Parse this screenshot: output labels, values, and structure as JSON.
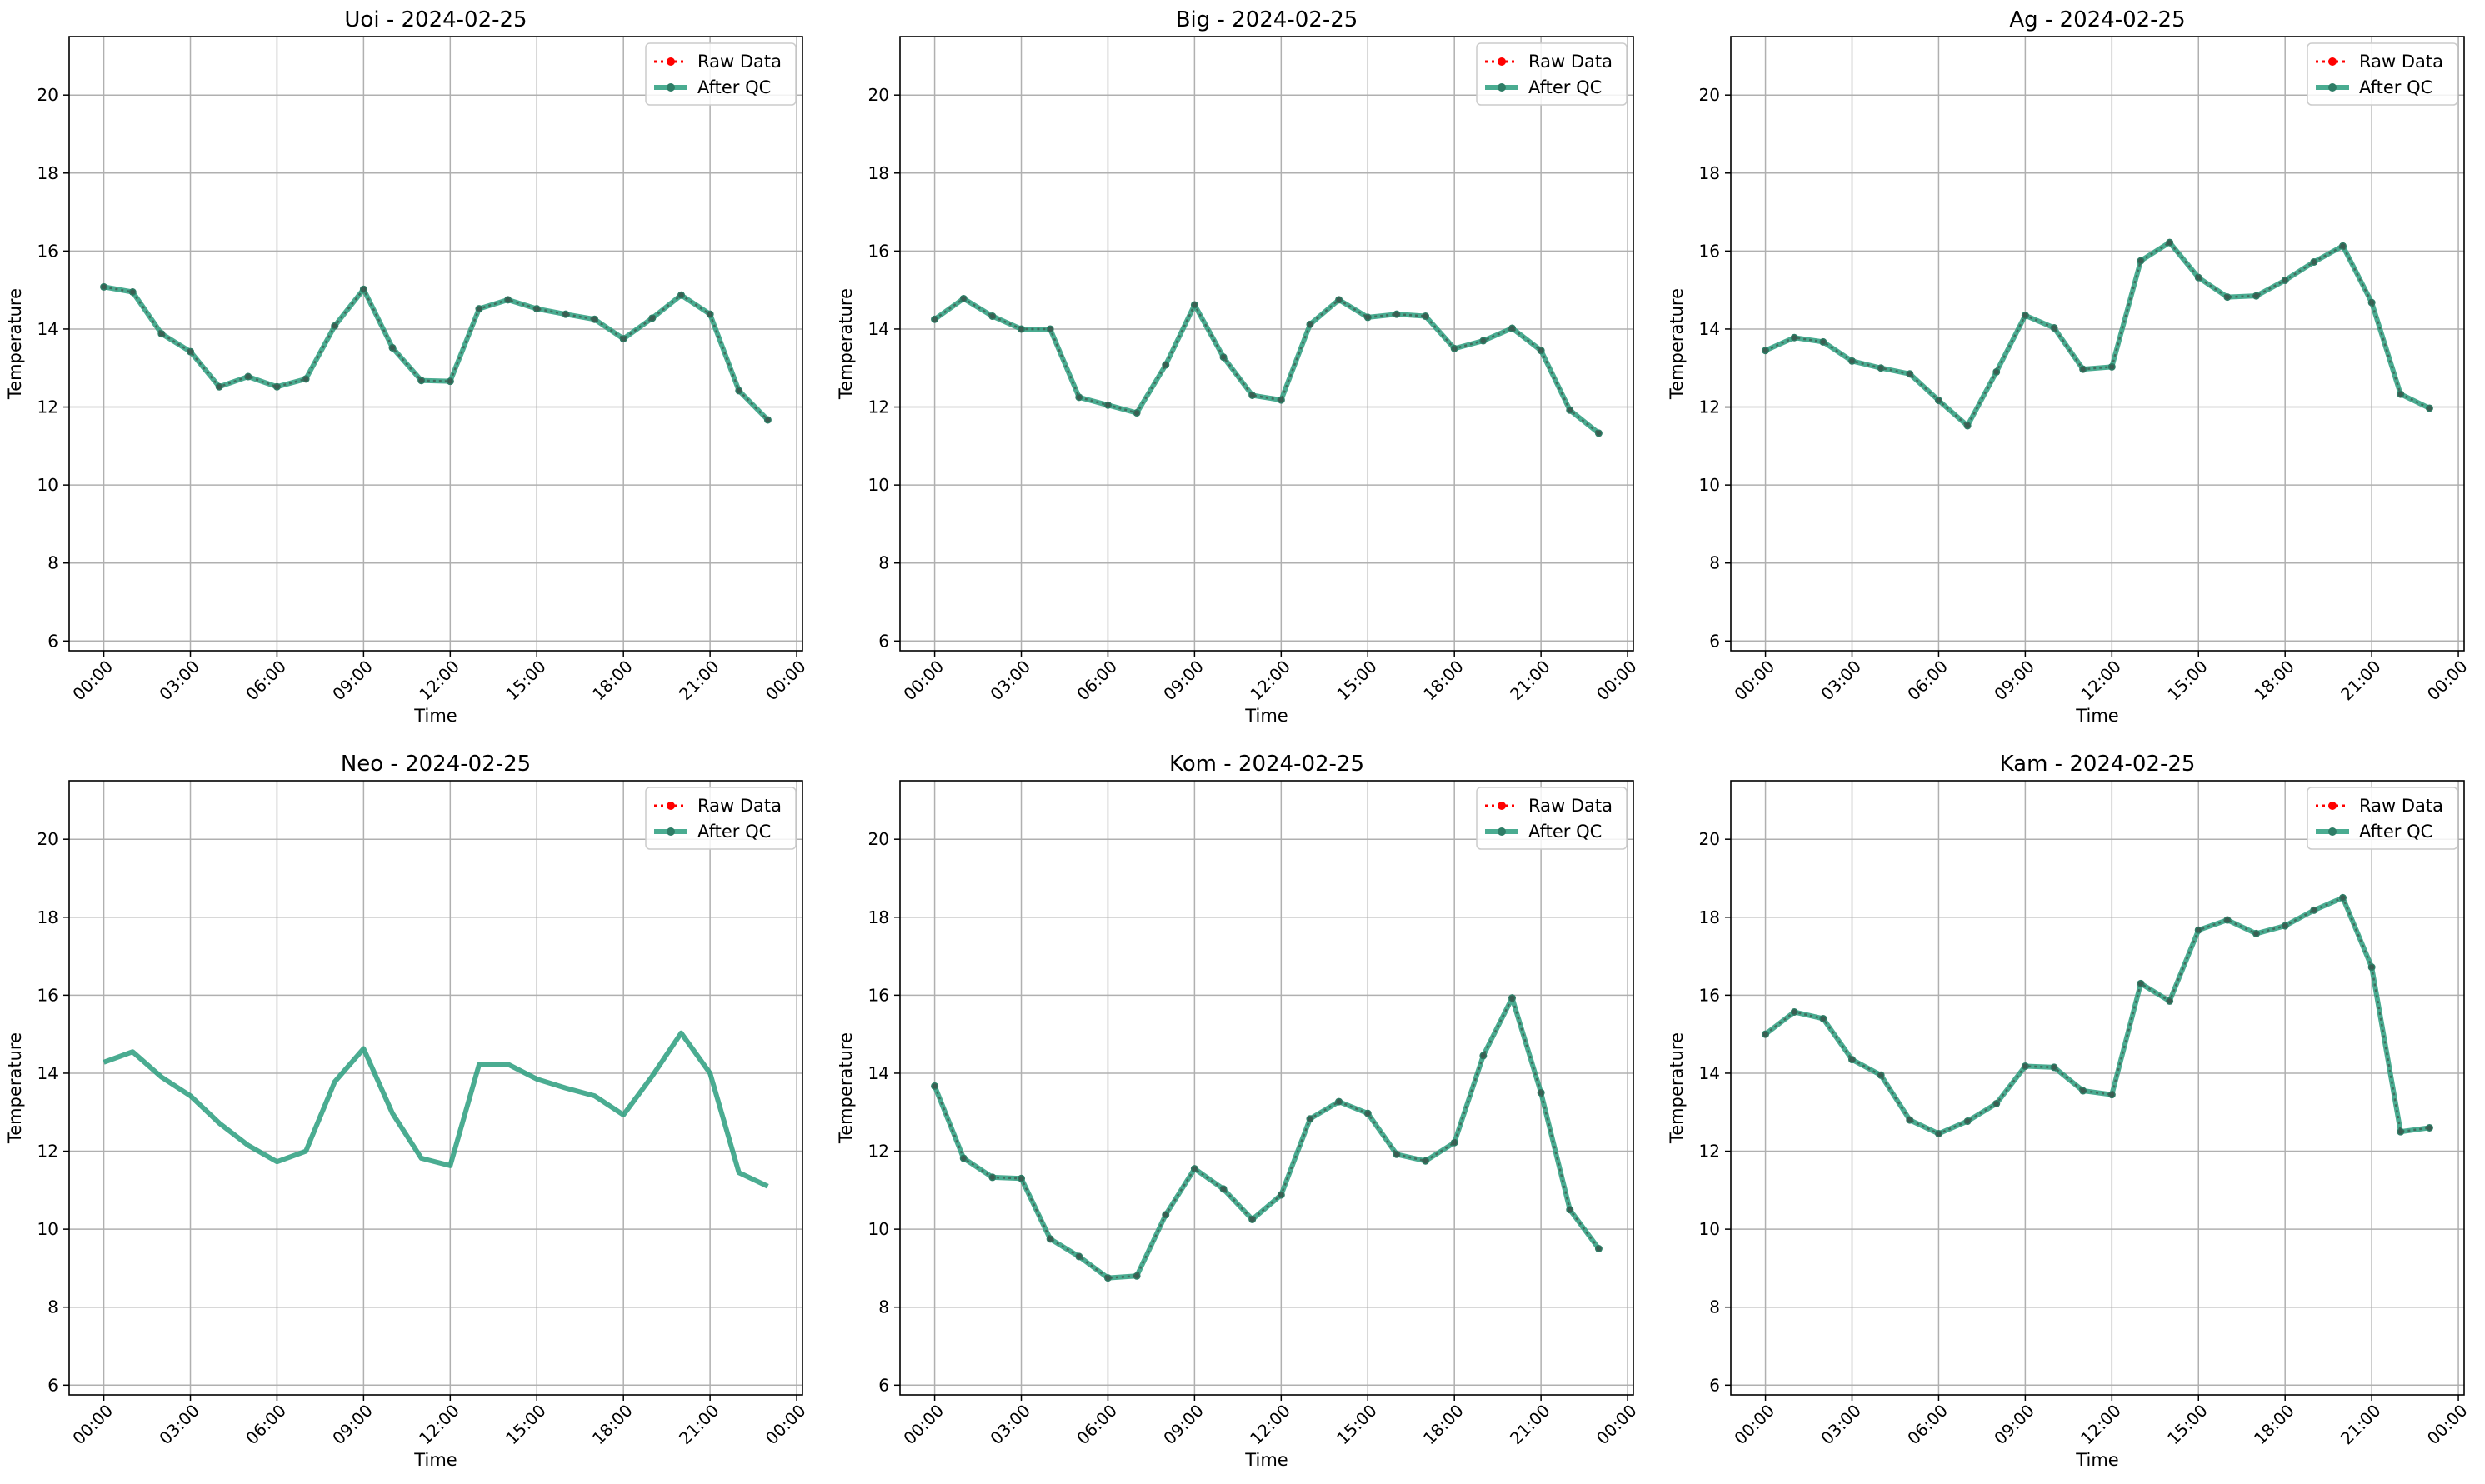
{
  "figure": {
    "colors": {
      "raw": "#ff0000",
      "qc": "#2a9d7e",
      "grid": "#b0b0b0",
      "axes": "#000000",
      "background": "#ffffff"
    }
  },
  "chart_data": [
    {
      "type": "line",
      "title": "Uoi - 2024-02-25",
      "xlabel": "Time",
      "ylabel": "Temperature",
      "x_ticks": [
        "00:00",
        "03:00",
        "06:00",
        "09:00",
        "12:00",
        "15:00",
        "18:00",
        "21:00",
        "00:00"
      ],
      "y_ticks": [
        6,
        8,
        10,
        12,
        14,
        16,
        18,
        20
      ],
      "ylim": [
        5.75,
        21.5
      ],
      "xlim_hours": [
        -1.2,
        24.2
      ],
      "grid": true,
      "legend_position": "upper right",
      "x_hours": [
        0,
        1,
        2,
        3,
        4,
        5,
        6,
        7,
        8,
        9,
        10,
        11,
        12,
        13,
        14,
        15,
        16,
        17,
        18,
        19,
        20,
        21,
        22,
        23
      ],
      "series": [
        {
          "name": "Raw Data",
          "style": "dotted",
          "marker": true,
          "values": [
            15.08,
            14.95,
            13.88,
            13.42,
            12.52,
            12.78,
            12.52,
            12.72,
            14.08,
            15.02,
            13.52,
            12.68,
            12.66,
            14.52,
            14.75,
            14.52,
            14.38,
            14.25,
            13.75,
            14.28,
            14.87,
            14.38,
            12.42,
            11.67
          ]
        },
        {
          "name": "After QC",
          "style": "solid",
          "marker": true,
          "values": [
            15.08,
            14.95,
            13.88,
            13.42,
            12.52,
            12.78,
            12.52,
            12.72,
            14.08,
            15.02,
            13.52,
            12.68,
            12.66,
            14.52,
            14.75,
            14.52,
            14.38,
            14.25,
            13.75,
            14.28,
            14.87,
            14.38,
            12.42,
            11.67
          ]
        }
      ]
    },
    {
      "type": "line",
      "title": "Big - 2024-02-25",
      "xlabel": "Time",
      "ylabel": "Temperature",
      "x_ticks": [
        "00:00",
        "03:00",
        "06:00",
        "09:00",
        "12:00",
        "15:00",
        "18:00",
        "21:00",
        "00:00"
      ],
      "y_ticks": [
        6,
        8,
        10,
        12,
        14,
        16,
        18,
        20
      ],
      "ylim": [
        5.75,
        21.5
      ],
      "xlim_hours": [
        -1.2,
        24.2
      ],
      "grid": true,
      "legend_position": "upper right",
      "x_hours": [
        0,
        1,
        2,
        3,
        4,
        5,
        6,
        7,
        8,
        9,
        10,
        11,
        12,
        13,
        14,
        15,
        16,
        17,
        18,
        19,
        20,
        21,
        22,
        23
      ],
      "series": [
        {
          "name": "Raw Data",
          "style": "dotted",
          "marker": true,
          "values": [
            14.25,
            14.78,
            14.33,
            14.0,
            14.0,
            12.25,
            12.05,
            11.85,
            13.08,
            14.62,
            13.28,
            12.3,
            12.18,
            14.12,
            14.75,
            14.3,
            14.38,
            14.33,
            13.5,
            13.7,
            14.02,
            13.45,
            11.92,
            11.33
          ]
        },
        {
          "name": "After QC",
          "style": "solid",
          "marker": true,
          "values": [
            14.25,
            14.78,
            14.33,
            14.0,
            14.0,
            12.25,
            12.05,
            11.85,
            13.08,
            14.62,
            13.28,
            12.3,
            12.18,
            14.12,
            14.75,
            14.3,
            14.38,
            14.33,
            13.5,
            13.7,
            14.02,
            13.45,
            11.92,
            11.33
          ]
        }
      ]
    },
    {
      "type": "line",
      "title": "Ag - 2024-02-25",
      "xlabel": "Time",
      "ylabel": "Temperature",
      "x_ticks": [
        "00:00",
        "03:00",
        "06:00",
        "09:00",
        "12:00",
        "15:00",
        "18:00",
        "21:00",
        "00:00"
      ],
      "y_ticks": [
        6,
        8,
        10,
        12,
        14,
        16,
        18,
        20
      ],
      "ylim": [
        5.75,
        21.5
      ],
      "xlim_hours": [
        -1.2,
        24.2
      ],
      "grid": true,
      "legend_position": "upper right",
      "x_hours": [
        0,
        1,
        2,
        3,
        4,
        5,
        6,
        7,
        8,
        9,
        10,
        11,
        12,
        13,
        14,
        15,
        16,
        17,
        18,
        19,
        20,
        21,
        22,
        23
      ],
      "series": [
        {
          "name": "Raw Data",
          "style": "dotted",
          "marker": true,
          "values": [
            13.45,
            13.78,
            13.67,
            13.18,
            13.0,
            12.85,
            12.17,
            11.52,
            12.9,
            14.35,
            14.03,
            12.97,
            13.03,
            15.75,
            16.22,
            15.32,
            14.82,
            14.85,
            15.25,
            15.72,
            16.13,
            14.68,
            12.33,
            11.97
          ]
        },
        {
          "name": "After QC",
          "style": "solid",
          "marker": true,
          "values": [
            13.45,
            13.78,
            13.67,
            13.18,
            13.0,
            12.85,
            12.17,
            11.52,
            12.9,
            14.35,
            14.03,
            12.97,
            13.03,
            15.75,
            16.22,
            15.32,
            14.82,
            14.85,
            15.25,
            15.72,
            16.13,
            14.68,
            12.33,
            11.97
          ]
        }
      ]
    },
    {
      "type": "line",
      "title": "Neo - 2024-02-25",
      "xlabel": "Time",
      "ylabel": "Temperature",
      "x_ticks": [
        "00:00",
        "03:00",
        "06:00",
        "09:00",
        "12:00",
        "15:00",
        "18:00",
        "21:00",
        "00:00"
      ],
      "y_ticks": [
        6,
        8,
        10,
        12,
        14,
        16,
        18,
        20
      ],
      "ylim": [
        5.75,
        21.5
      ],
      "xlim_hours": [
        -1.2,
        24.2
      ],
      "grid": true,
      "legend_position": "upper right",
      "x_hours": [
        0,
        1,
        2,
        3,
        4,
        5,
        6,
        7,
        8,
        9,
        10,
        11,
        12,
        13,
        14,
        15,
        16,
        17,
        18,
        19,
        20,
        21,
        22,
        23
      ],
      "series": [
        {
          "name": "Raw Data",
          "style": "dotted",
          "marker": true,
          "values": []
        },
        {
          "name": "After QC",
          "style": "solid",
          "marker": false,
          "values": [
            14.28,
            14.55,
            13.9,
            13.42,
            12.72,
            12.15,
            11.73,
            12.0,
            13.78,
            14.63,
            12.97,
            11.82,
            11.63,
            14.22,
            14.23,
            13.85,
            13.62,
            13.42,
            12.93,
            13.93,
            15.03,
            14.0,
            11.45,
            11.1
          ]
        }
      ]
    },
    {
      "type": "line",
      "title": "Kom - 2024-02-25",
      "xlabel": "Time",
      "ylabel": "Temperature",
      "x_ticks": [
        "00:00",
        "03:00",
        "06:00",
        "09:00",
        "12:00",
        "15:00",
        "18:00",
        "21:00",
        "00:00"
      ],
      "y_ticks": [
        6,
        8,
        10,
        12,
        14,
        16,
        18,
        20
      ],
      "ylim": [
        5.75,
        21.5
      ],
      "xlim_hours": [
        -1.2,
        24.2
      ],
      "grid": true,
      "legend_position": "upper right",
      "x_hours": [
        0,
        1,
        2,
        3,
        4,
        5,
        6,
        7,
        8,
        9,
        10,
        11,
        12,
        13,
        14,
        15,
        16,
        17,
        18,
        19,
        20,
        21,
        22,
        23
      ],
      "series": [
        {
          "name": "Raw Data",
          "style": "dotted",
          "marker": true,
          "values": [
            13.67,
            11.82,
            11.33,
            11.3,
            9.75,
            9.3,
            8.75,
            8.8,
            10.37,
            11.55,
            11.03,
            10.25,
            10.88,
            12.83,
            13.27,
            12.97,
            11.92,
            11.75,
            12.22,
            14.45,
            15.93,
            13.5,
            10.5,
            9.5
          ]
        },
        {
          "name": "After QC",
          "style": "solid",
          "marker": true,
          "values": [
            13.67,
            11.82,
            11.33,
            11.3,
            9.75,
            9.3,
            8.75,
            8.8,
            10.37,
            11.55,
            11.03,
            10.25,
            10.88,
            12.83,
            13.27,
            12.97,
            11.92,
            11.75,
            12.22,
            14.45,
            15.93,
            13.5,
            10.5,
            9.5
          ]
        }
      ]
    },
    {
      "type": "line",
      "title": "Kam - 2024-02-25",
      "xlabel": "Time",
      "ylabel": "Temperature",
      "x_ticks": [
        "00:00",
        "03:00",
        "06:00",
        "09:00",
        "12:00",
        "15:00",
        "18:00",
        "21:00",
        "00:00"
      ],
      "y_ticks": [
        6,
        8,
        10,
        12,
        14,
        16,
        18,
        20
      ],
      "ylim": [
        5.75,
        21.5
      ],
      "xlim_hours": [
        -1.2,
        24.2
      ],
      "grid": true,
      "legend_position": "upper right",
      "x_hours": [
        0,
        1,
        2,
        3,
        4,
        5,
        6,
        7,
        8,
        9,
        10,
        11,
        12,
        13,
        14,
        15,
        16,
        17,
        18,
        19,
        20,
        21,
        22,
        23
      ],
      "series": [
        {
          "name": "Raw Data",
          "style": "dotted",
          "marker": true,
          "values": [
            15.0,
            15.57,
            15.4,
            14.35,
            13.95,
            12.8,
            12.45,
            12.77,
            13.22,
            14.18,
            14.15,
            13.55,
            13.45,
            16.3,
            15.85,
            17.67,
            17.93,
            17.58,
            17.78,
            18.18,
            18.5,
            16.72,
            12.5,
            12.6
          ]
        },
        {
          "name": "After QC",
          "style": "solid",
          "marker": true,
          "values": [
            15.0,
            15.57,
            15.4,
            14.35,
            13.95,
            12.8,
            12.45,
            12.77,
            13.22,
            14.18,
            14.15,
            13.55,
            13.45,
            16.3,
            15.85,
            17.67,
            17.93,
            17.58,
            17.78,
            18.18,
            18.5,
            16.72,
            12.5,
            12.6
          ]
        }
      ]
    }
  ]
}
